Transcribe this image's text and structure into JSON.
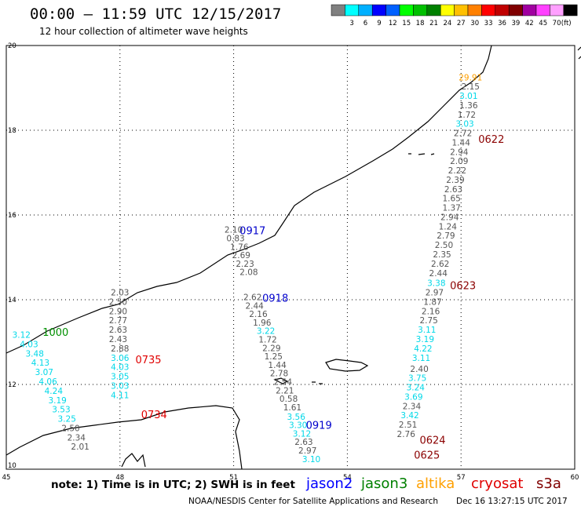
{
  "header": {
    "title": "00:00 – 11:59 UTC 12/15/2017",
    "subtitle": "12 hour collection of altimeter wave heights"
  },
  "colorbar": {
    "unit": "(ft)",
    "bins": [
      {
        "label": "",
        "color": "#808080"
      },
      {
        "label": "3",
        "color": "#00ffff"
      },
      {
        "label": "6",
        "color": "#00b0ff"
      },
      {
        "label": "9",
        "color": "#0000ff"
      },
      {
        "label": "12",
        "color": "#0060ff"
      },
      {
        "label": "15",
        "color": "#00ff00"
      },
      {
        "label": "18",
        "color": "#00c000"
      },
      {
        "label": "21",
        "color": "#008000"
      },
      {
        "label": "24",
        "color": "#ffff00"
      },
      {
        "label": "27",
        "color": "#ffc000"
      },
      {
        "label": "30",
        "color": "#ff8000"
      },
      {
        "label": "33",
        "color": "#ff0000"
      },
      {
        "label": "36",
        "color": "#c00000"
      },
      {
        "label": "39",
        "color": "#800000"
      },
      {
        "label": "42",
        "color": "#a000a0"
      },
      {
        "label": "45",
        "color": "#ff40ff"
      },
      {
        "label": "70",
        "color": "#ffa0ff"
      },
      {
        "label": "",
        "color": "#000000"
      }
    ]
  },
  "axes": {
    "lon_labels": [
      "45",
      "48",
      "51",
      "54",
      "57",
      "60"
    ],
    "lat_labels": [
      "20",
      "18",
      "16",
      "14",
      "12",
      "10"
    ]
  },
  "colors": {
    "grey": "#555555",
    "cyan": "#00d8e8",
    "blue": "#0000cc",
    "green": "#009000",
    "orange": "#ffa000",
    "red": "#e00000",
    "darkred": "#8b0000"
  },
  "tracks": [
    {
      "time": "1000",
      "time_color": "green",
      "time_lon": 46.3,
      "time_lat": 13.15,
      "points": [
        {
          "lon": 45.4,
          "lat": 13.1,
          "v": "3.12",
          "c": "cyan"
        },
        {
          "lon": 45.6,
          "lat": 12.88,
          "v": "4.03",
          "c": "cyan"
        },
        {
          "lon": 45.75,
          "lat": 12.66,
          "v": "3.48",
          "c": "cyan"
        },
        {
          "lon": 45.9,
          "lat": 12.44,
          "v": "4.13",
          "c": "cyan"
        },
        {
          "lon": 46.0,
          "lat": 12.22,
          "v": "3.07",
          "c": "cyan"
        },
        {
          "lon": 46.1,
          "lat": 12.0,
          "v": "4.06",
          "c": "cyan"
        },
        {
          "lon": 46.25,
          "lat": 11.78,
          "v": "4.24",
          "c": "cyan"
        },
        {
          "lon": 46.35,
          "lat": 11.56,
          "v": "3.19",
          "c": "cyan"
        },
        {
          "lon": 46.45,
          "lat": 11.34,
          "v": "3.53",
          "c": "cyan"
        },
        {
          "lon": 46.6,
          "lat": 11.12,
          "v": "3.25",
          "c": "cyan"
        },
        {
          "lon": 46.7,
          "lat": 10.9,
          "v": "2.50",
          "c": "grey"
        },
        {
          "lon": 46.85,
          "lat": 10.68,
          "v": "2.34",
          "c": "grey"
        },
        {
          "lon": 46.95,
          "lat": 10.46,
          "v": "2.01",
          "c": "grey"
        }
      ]
    },
    {
      "time": "0735",
      "time_color": "red",
      "time_lon": 48.75,
      "time_lat": 12.5,
      "points": [
        {
          "lon": 48.0,
          "lat": 14.1,
          "v": "2.03",
          "c": "grey"
        },
        {
          "lon": 47.95,
          "lat": 13.88,
          "v": "2.50",
          "c": "grey"
        },
        {
          "lon": 47.95,
          "lat": 13.66,
          "v": "2.90",
          "c": "grey"
        },
        {
          "lon": 47.95,
          "lat": 13.44,
          "v": "2.77",
          "c": "grey"
        },
        {
          "lon": 47.95,
          "lat": 13.22,
          "v": "2.63",
          "c": "grey"
        },
        {
          "lon": 47.95,
          "lat": 13.0,
          "v": "2.43",
          "c": "grey"
        },
        {
          "lon": 48.0,
          "lat": 12.78,
          "v": "2.88",
          "c": "grey"
        },
        {
          "lon": 48.0,
          "lat": 12.56,
          "v": "3.06",
          "c": "cyan"
        },
        {
          "lon": 48.0,
          "lat": 12.34,
          "v": "4.03",
          "c": "cyan"
        },
        {
          "lon": 48.0,
          "lat": 12.12,
          "v": "3.05",
          "c": "cyan"
        },
        {
          "lon": 48.0,
          "lat": 11.9,
          "v": "3.03",
          "c": "cyan"
        },
        {
          "lon": 48.0,
          "lat": 11.68,
          "v": "4.11",
          "c": "cyan"
        }
      ]
    },
    {
      "time": "0734",
      "time_color": "red",
      "time_lon": 48.9,
      "time_lat": 11.2,
      "points": []
    },
    {
      "time": "0917",
      "time_color": "blue",
      "time_lon": 51.5,
      "time_lat": 15.55,
      "points": [
        {
          "lon": 51.0,
          "lat": 15.58,
          "v": "2.10",
          "c": "grey"
        },
        {
          "lon": 51.05,
          "lat": 15.38,
          "v": "0.83",
          "c": "grey"
        },
        {
          "lon": 51.15,
          "lat": 15.18,
          "v": "1.76",
          "c": "grey"
        },
        {
          "lon": 51.2,
          "lat": 14.98,
          "v": "2.69",
          "c": "grey"
        },
        {
          "lon": 51.3,
          "lat": 14.78,
          "v": "2.23",
          "c": "grey"
        },
        {
          "lon": 51.4,
          "lat": 14.58,
          "v": "2.08",
          "c": "grey"
        }
      ]
    },
    {
      "time": "0918",
      "time_color": "blue",
      "time_lon": 52.1,
      "time_lat": 13.95,
      "points": [
        {
          "lon": 51.5,
          "lat": 13.99,
          "v": "2.62",
          "c": "grey"
        },
        {
          "lon": 51.55,
          "lat": 13.79,
          "v": "2.44",
          "c": "grey"
        },
        {
          "lon": 51.65,
          "lat": 13.59,
          "v": "2.16",
          "c": "grey"
        },
        {
          "lon": 51.75,
          "lat": 13.39,
          "v": "1.96",
          "c": "grey"
        },
        {
          "lon": 51.85,
          "lat": 13.19,
          "v": "3.22",
          "c": "cyan"
        },
        {
          "lon": 51.9,
          "lat": 12.99,
          "v": "1.72",
          "c": "grey"
        },
        {
          "lon": 52.0,
          "lat": 12.79,
          "v": "2.29",
          "c": "grey"
        },
        {
          "lon": 52.05,
          "lat": 12.59,
          "v": "1.25",
          "c": "grey"
        },
        {
          "lon": 52.15,
          "lat": 12.39,
          "v": "1.44",
          "c": "grey"
        },
        {
          "lon": 52.2,
          "lat": 12.19,
          "v": "2.78",
          "c": "grey"
        },
        {
          "lon": 52.3,
          "lat": 11.99,
          "v": "2.54",
          "c": "grey"
        },
        {
          "lon": 52.35,
          "lat": 11.79,
          "v": "2.21",
          "c": "grey"
        },
        {
          "lon": 52.45,
          "lat": 11.59,
          "v": "0.58",
          "c": "grey"
        },
        {
          "lon": 52.55,
          "lat": 11.39,
          "v": "1.61",
          "c": "grey"
        }
      ]
    },
    {
      "time": "0919",
      "time_color": "blue",
      "time_lon": 53.25,
      "time_lat": 10.95,
      "points": [
        {
          "lon": 52.65,
          "lat": 11.17,
          "v": "3.56",
          "c": "cyan"
        },
        {
          "lon": 52.7,
          "lat": 10.97,
          "v": "3.30",
          "c": "cyan"
        },
        {
          "lon": 52.8,
          "lat": 10.77,
          "v": "3.12",
          "c": "cyan"
        },
        {
          "lon": 52.85,
          "lat": 10.57,
          "v": "2.63",
          "c": "grey"
        },
        {
          "lon": 52.95,
          "lat": 10.37,
          "v": "2.97",
          "c": "grey"
        },
        {
          "lon": 53.05,
          "lat": 10.17,
          "v": "3.10",
          "c": "cyan"
        }
      ]
    },
    {
      "time": "0622",
      "time_color": "darkred",
      "time_lon": 57.8,
      "time_lat": 17.7,
      "points": [
        {
          "lon": 57.25,
          "lat": 19.18,
          "v": "29.91",
          "c": "orange"
        },
        {
          "lon": 57.25,
          "lat": 18.96,
          "v": "2.15",
          "c": "grey"
        },
        {
          "lon": 57.2,
          "lat": 18.74,
          "v": "3.01",
          "c": "cyan"
        },
        {
          "lon": 57.2,
          "lat": 18.52,
          "v": "1.36",
          "c": "grey"
        },
        {
          "lon": 57.15,
          "lat": 18.3,
          "v": "1.72",
          "c": "grey"
        },
        {
          "lon": 57.1,
          "lat": 18.08,
          "v": "3.03",
          "c": "cyan"
        },
        {
          "lon": 57.05,
          "lat": 17.86,
          "v": "2.72",
          "c": "grey"
        },
        {
          "lon": 57.0,
          "lat": 17.64,
          "v": "1.44",
          "c": "grey"
        },
        {
          "lon": 56.95,
          "lat": 17.42,
          "v": "2.94",
          "c": "grey"
        },
        {
          "lon": 56.95,
          "lat": 17.2,
          "v": "2.09",
          "c": "grey"
        },
        {
          "lon": 56.9,
          "lat": 16.98,
          "v": "2.22",
          "c": "grey"
        },
        {
          "lon": 56.85,
          "lat": 16.76,
          "v": "2.39",
          "c": "grey"
        },
        {
          "lon": 56.8,
          "lat": 16.54,
          "v": "2.63",
          "c": "grey"
        },
        {
          "lon": 56.75,
          "lat": 16.32,
          "v": "1.65",
          "c": "grey"
        },
        {
          "lon": 56.75,
          "lat": 16.1,
          "v": "1.37",
          "c": "grey"
        },
        {
          "lon": 56.7,
          "lat": 15.88,
          "v": "2.94",
          "c": "grey"
        },
        {
          "lon": 56.65,
          "lat": 15.66,
          "v": "1.24",
          "c": "grey"
        },
        {
          "lon": 56.6,
          "lat": 15.44,
          "v": "2.79",
          "c": "grey"
        },
        {
          "lon": 56.55,
          "lat": 15.22,
          "v": "2.50",
          "c": "grey"
        },
        {
          "lon": 56.5,
          "lat": 15.0,
          "v": "2.35",
          "c": "grey"
        },
        {
          "lon": 56.45,
          "lat": 14.78,
          "v": "2.62",
          "c": "grey"
        }
      ]
    },
    {
      "time": "0623",
      "time_color": "darkred",
      "time_lon": 57.05,
      "time_lat": 14.25,
      "points": [
        {
          "lon": 56.4,
          "lat": 14.56,
          "v": "2.44",
          "c": "grey"
        },
        {
          "lon": 56.35,
          "lat": 14.32,
          "v": "3.38",
          "c": "cyan"
        },
        {
          "lon": 56.3,
          "lat": 14.1,
          "v": "2.97",
          "c": "grey"
        },
        {
          "lon": 56.25,
          "lat": 13.88,
          "v": "1.87",
          "c": "grey"
        },
        {
          "lon": 56.2,
          "lat": 13.66,
          "v": "2.16",
          "c": "grey"
        },
        {
          "lon": 56.15,
          "lat": 13.44,
          "v": "2.75",
          "c": "grey"
        },
        {
          "lon": 56.1,
          "lat": 13.22,
          "v": "3.11",
          "c": "cyan"
        },
        {
          "lon": 56.05,
          "lat": 13.0,
          "v": "3.19",
          "c": "cyan"
        },
        {
          "lon": 56.0,
          "lat": 12.78,
          "v": "4.22",
          "c": "cyan"
        },
        {
          "lon": 55.95,
          "lat": 12.56,
          "v": "3.11",
          "c": "cyan"
        }
      ]
    },
    {
      "time": "0624",
      "time_color": "darkred",
      "time_lon": 56.25,
      "time_lat": 10.6,
      "points": [
        {
          "lon": 55.9,
          "lat": 12.3,
          "v": "2.40",
          "c": "grey"
        },
        {
          "lon": 55.85,
          "lat": 12.08,
          "v": "3.75",
          "c": "cyan"
        },
        {
          "lon": 55.8,
          "lat": 11.86,
          "v": "3.24",
          "c": "cyan"
        },
        {
          "lon": 55.75,
          "lat": 11.64,
          "v": "3.69",
          "c": "cyan"
        },
        {
          "lon": 55.7,
          "lat": 11.42,
          "v": "2.34",
          "c": "grey"
        },
        {
          "lon": 55.65,
          "lat": 11.2,
          "v": "3.42",
          "c": "cyan"
        },
        {
          "lon": 55.6,
          "lat": 10.98,
          "v": "2.51",
          "c": "grey"
        },
        {
          "lon": 55.55,
          "lat": 10.76,
          "v": "2.76",
          "c": "grey"
        }
      ]
    },
    {
      "time": "0625",
      "time_color": "darkred",
      "time_lon": 56.1,
      "time_lat": 10.25,
      "points": []
    }
  ],
  "footer": {
    "note": "note: 1) Time is in UTC; 2) SWH is in feet",
    "satellites": [
      {
        "name": "jason2",
        "color": "#0000ff"
      },
      {
        "name": "jason3",
        "color": "#008000"
      },
      {
        "name": "altika",
        "color": "#ffa000"
      },
      {
        "name": "cryosat",
        "color": "#e00000"
      },
      {
        "name": "s3a",
        "color": "#800000"
      }
    ],
    "credit": "NOAA/NESDIS Center for Satellite Applications and Research",
    "timestamp": "Dec 16 13:27:15 UTC 2017"
  }
}
